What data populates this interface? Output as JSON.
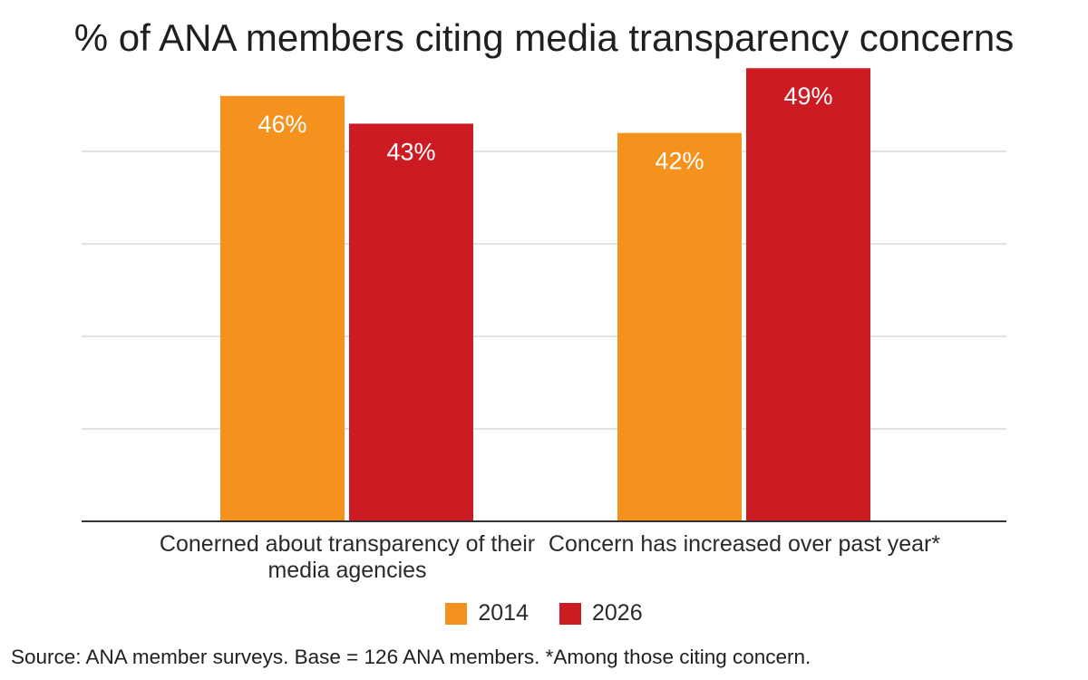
{
  "chart_data": {
    "type": "bar",
    "title": "% of ANA members citing media transparency concerns",
    "categories": [
      "Conerned about transparency of their media agencies",
      "Concern has increased over past year*"
    ],
    "series": [
      {
        "name": "2014",
        "color": "#f5921e",
        "values": [
          46,
          42
        ],
        "labels": [
          "46%",
          "42%"
        ]
      },
      {
        "name": "2026",
        "color": "#cc1b22",
        "values": [
          43,
          49
        ],
        "labels": [
          "43%",
          "49%"
        ]
      }
    ],
    "ylim": [
      0,
      50
    ],
    "grid": true,
    "legend_position": "bottom",
    "xlabel": "",
    "ylabel": ""
  },
  "footnote": "Source: ANA member surveys.  Base = 126 ANA members. *Among those citing concern."
}
